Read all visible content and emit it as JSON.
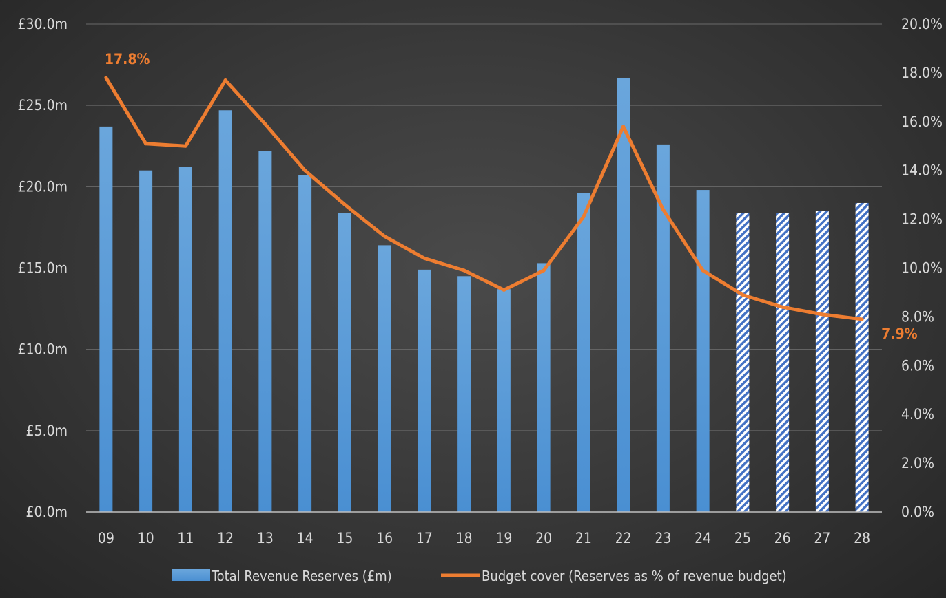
{
  "chart_data": {
    "type": "bar",
    "categories": [
      "09",
      "10",
      "11",
      "12",
      "13",
      "14",
      "15",
      "16",
      "17",
      "18",
      "19",
      "20",
      "21",
      "22",
      "23",
      "24",
      "25",
      "26",
      "27",
      "28"
    ],
    "series": [
      {
        "name": "Total Revenue Reserves (£m)",
        "type": "bar",
        "axis": "left",
        "color": "#5B9BD5",
        "values": [
          23.7,
          21.0,
          21.2,
          24.7,
          22.2,
          20.7,
          18.4,
          16.4,
          14.9,
          14.5,
          13.7,
          15.3,
          19.6,
          26.7,
          22.6,
          19.8,
          18.4,
          18.4,
          18.5,
          19.0
        ],
        "projected_from": "25"
      },
      {
        "name": "Budget cover (Reserves as % of revenue budget)",
        "type": "line",
        "axis": "right",
        "color": "#ED7D31",
        "values": [
          17.8,
          15.1,
          15.0,
          17.7,
          15.9,
          14.0,
          12.6,
          11.3,
          10.4,
          9.9,
          9.1,
          9.9,
          12.1,
          15.8,
          12.4,
          9.9,
          8.9,
          8.4,
          8.1,
          7.9
        ]
      }
    ],
    "y_left": {
      "ylim": [
        0,
        30
      ],
      "ticks": [
        "£0.0m",
        "£5.0m",
        "£10.0m",
        "£15.0m",
        "£20.0m",
        "£25.0m",
        "£30.0m"
      ]
    },
    "y_right": {
      "ylim": [
        0,
        20
      ],
      "ticks": [
        "0.0%",
        "2.0%",
        "4.0%",
        "6.0%",
        "8.0%",
        "10.0%",
        "12.0%",
        "14.0%",
        "16.0%",
        "18.0%",
        "20.0%"
      ]
    },
    "annotations": [
      {
        "category": "09",
        "text": "17.8%"
      },
      {
        "category": "28",
        "text": "7.9%"
      }
    ],
    "grid": true,
    "legend": "bottom"
  }
}
